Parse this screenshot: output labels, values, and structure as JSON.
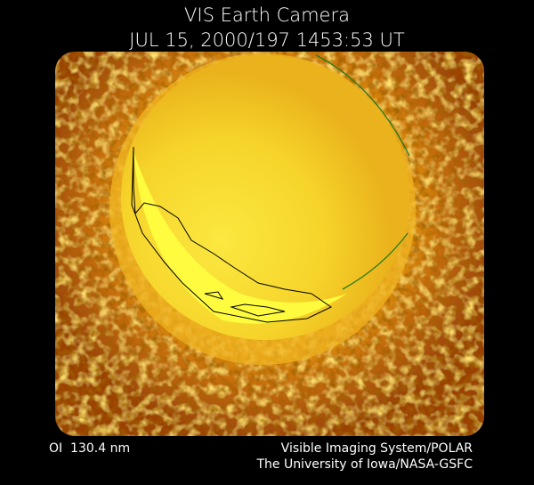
{
  "header": {
    "title": "VIS Earth Camera",
    "timestamp": "JUL 15, 2000/197 1453:53 UT"
  },
  "footer": {
    "wavelength": "OI  130.4 nm",
    "credit_lines": [
      "Visible Imaging System/POLAR",
      "The University of Iowa/NASA-GSFC"
    ]
  }
}
